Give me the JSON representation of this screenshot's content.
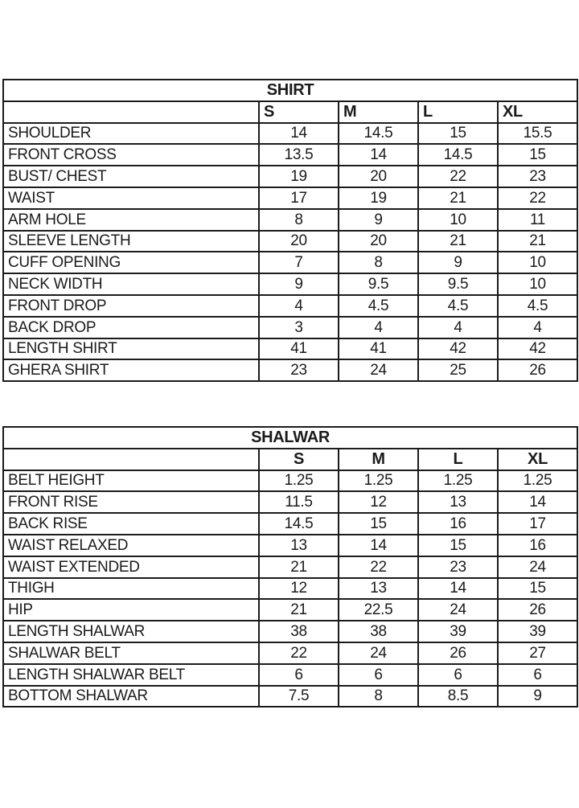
{
  "colors": {
    "background": "#ffffff",
    "border": "#1b1b1b",
    "text": "#1b1b1b"
  },
  "shirt_table": {
    "title": "SHIRT",
    "size_headers": [
      "S",
      "M",
      "L",
      "XL"
    ],
    "rows": [
      {
        "label": "SHOULDER",
        "values": [
          "14",
          "14.5",
          "15",
          "15.5"
        ]
      },
      {
        "label": "FRONT CROSS",
        "values": [
          "13.5",
          "14",
          "14.5",
          "15"
        ]
      },
      {
        "label": "BUST/ CHEST",
        "values": [
          "19",
          "20",
          "22",
          "23"
        ]
      },
      {
        "label": "WAIST",
        "values": [
          "17",
          "19",
          "21",
          "22"
        ]
      },
      {
        "label": "ARM HOLE",
        "values": [
          "8",
          "9",
          "10",
          "11"
        ]
      },
      {
        "label": "SLEEVE LENGTH",
        "values": [
          "20",
          "20",
          "21",
          "21"
        ]
      },
      {
        "label": "CUFF OPENING",
        "values": [
          "7",
          "8",
          "9",
          "10"
        ]
      },
      {
        "label": "NECK WIDTH",
        "values": [
          "9",
          "9.5",
          "9.5",
          "10"
        ]
      },
      {
        "label": "FRONT DROP",
        "values": [
          "4",
          "4.5",
          "4.5",
          "4.5"
        ]
      },
      {
        "label": "BACK DROP",
        "values": [
          "3",
          "4",
          "4",
          "4"
        ]
      },
      {
        "label": "LENGTH SHIRT",
        "values": [
          "41",
          "41",
          "42",
          "42"
        ]
      },
      {
        "label": "GHERA SHIRT",
        "values": [
          "23",
          "24",
          "25",
          "26"
        ]
      }
    ]
  },
  "shalwar_table": {
    "title": "SHALWAR",
    "size_headers": [
      "S",
      "M",
      "L",
      "XL"
    ],
    "rows": [
      {
        "label": "BELT HEIGHT",
        "values": [
          "1.25",
          "1.25",
          "1.25",
          "1.25"
        ]
      },
      {
        "label": "FRONT RISE",
        "values": [
          "11.5",
          "12",
          "13",
          "14"
        ]
      },
      {
        "label": "BACK RISE",
        "values": [
          "14.5",
          "15",
          "16",
          "17"
        ]
      },
      {
        "label": "WAIST RELAXED",
        "values": [
          "13",
          "14",
          "15",
          "16"
        ]
      },
      {
        "label": "WAIST EXTENDED",
        "values": [
          "21",
          "22",
          "23",
          "24"
        ]
      },
      {
        "label": "THIGH",
        "values": [
          "12",
          "13",
          "14",
          "15"
        ]
      },
      {
        "label": "HIP",
        "values": [
          "21",
          "22.5",
          "24",
          "26"
        ]
      },
      {
        "label": "LENGTH SHALWAR",
        "values": [
          "38",
          "38",
          "39",
          "39"
        ]
      },
      {
        "label": "SHALWAR BELT",
        "values": [
          "22",
          "24",
          "26",
          "27"
        ]
      },
      {
        "label": "LENGTH SHALWAR BELT",
        "values": [
          "6",
          "6",
          "6",
          "6"
        ]
      },
      {
        "label": "BOTTOM SHALWAR",
        "values": [
          "7.5",
          "8",
          "8.5",
          "9"
        ]
      }
    ]
  }
}
